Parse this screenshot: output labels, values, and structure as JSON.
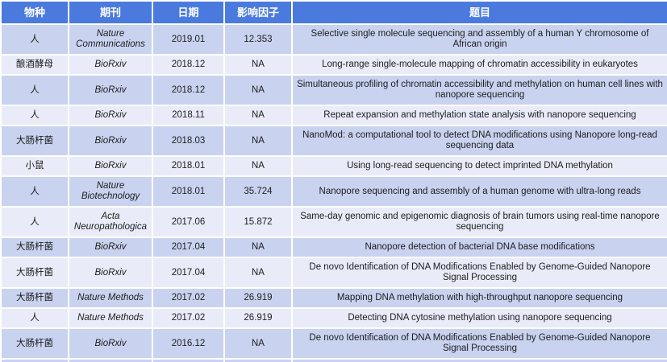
{
  "table": {
    "columns": [
      {
        "key": "species",
        "label": "物种"
      },
      {
        "key": "journal",
        "label": "期刊"
      },
      {
        "key": "date",
        "label": "日期"
      },
      {
        "key": "impact_factor",
        "label": "影响因子"
      },
      {
        "key": "title",
        "label": "题目"
      }
    ],
    "rows": [
      {
        "species": "人",
        "journal": "Nature Communications",
        "date": "2019.01",
        "impact_factor": "12.353",
        "title": "Selective single molecule sequencing and assembly of a human Y chromosome of African origin"
      },
      {
        "species": "酿酒酵母",
        "journal": "BioRxiv",
        "date": "2018.12",
        "impact_factor": "NA",
        "title": "Long-range single-molecule mapping of chromatin accessibility in eukaryotes"
      },
      {
        "species": "人",
        "journal": "BioRxiv",
        "date": "2018.12",
        "impact_factor": "NA",
        "title": "Simultaneous profiling of chromatin accessibility and methylation on human cell lines with nanopore sequencing"
      },
      {
        "species": "人",
        "journal": "BioRxiv",
        "date": "2018.11",
        "impact_factor": "NA",
        "title": "Repeat expansion and methylation state analysis with nanopore sequencing"
      },
      {
        "species": "大肠杆菌",
        "journal": "BioRxiv",
        "date": "2018.03",
        "impact_factor": "NA",
        "title": "NanoMod: a computational tool to detect DNA modifications using Nanopore long-read sequencing data"
      },
      {
        "species": "小鼠",
        "journal": "BioRxiv",
        "date": "2018.01",
        "impact_factor": "NA",
        "title": "Using long-read sequencing to detect imprinted DNA methylation"
      },
      {
        "species": "人",
        "journal": "Nature Biotechnology",
        "date": "2018.01",
        "impact_factor": "35.724",
        "title": "Nanopore sequencing and assembly of a human genome with ultra-long reads"
      },
      {
        "species": "人",
        "journal": "Acta Neuropathologica",
        "date": "2017.06",
        "impact_factor": "15.872",
        "title": "Same-day genomic and epigenomic diagnosis of brain tumors using real-time nanopore sequencing"
      },
      {
        "species": "大肠杆菌",
        "journal": "BioRxiv",
        "date": "2017.04",
        "impact_factor": "NA",
        "title": "Nanopore detection of bacterial DNA base modifications"
      },
      {
        "species": "大肠杆菌",
        "journal": "BioRxiv",
        "date": "2017.04",
        "impact_factor": "NA",
        "title": "De novo Identification of DNA Modifications Enabled by Genome-Guided Nanopore Signal Processing"
      },
      {
        "species": "大肠杆菌",
        "journal": "Nature Methods",
        "date": "2017.02",
        "impact_factor": "26.919",
        "title": "Mapping DNA methylation with high-throughput nanopore sequencing"
      },
      {
        "species": "人",
        "journal": "Nature Methods",
        "date": "2017.02",
        "impact_factor": "26.919",
        "title": "Detecting DNA cytosine methylation using nanopore sequencing"
      },
      {
        "species": "大肠杆菌",
        "journal": "BioRxiv",
        "date": "2016.12",
        "impact_factor": "NA",
        "title": "De novo Identification of DNA Modifications Enabled by Genome-Guided Nanopore Signal Processing"
      }
    ]
  },
  "colors": {
    "header_bg": "#4a7ade",
    "header_text": "#ffffff",
    "row_odd": "#c9d3f0",
    "row_even": "#e9ecf8",
    "border": "#ffffff",
    "text": "#1d1d1d"
  }
}
